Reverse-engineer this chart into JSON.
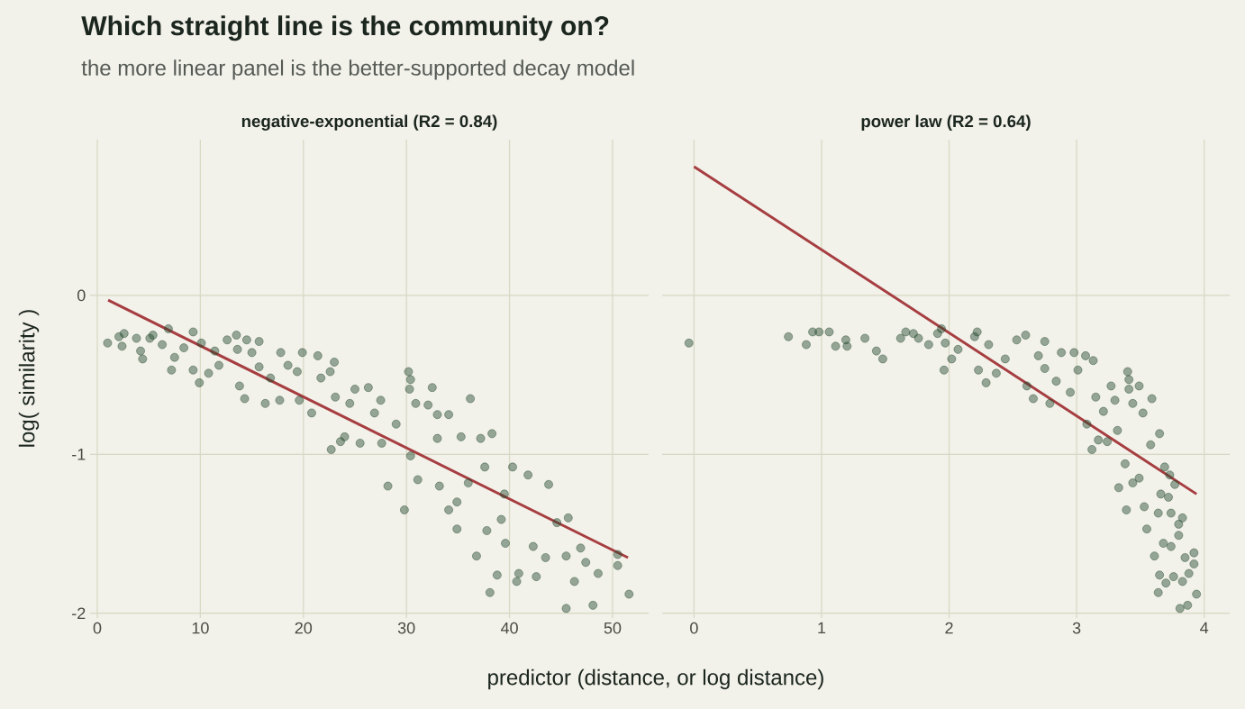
{
  "chart_data": [
    {
      "type": "scatter",
      "title": "Which straight line is the community on?",
      "subtitle": "the more linear panel is the better-supported decay model",
      "annotations": [
        "negative-exponential  (R2 = 0.84)"
      ],
      "xlabel": "predictor (distance, or log distance)",
      "ylabel": "log( similarity )",
      "xlim": [
        -0.7,
        53.5
      ],
      "ylim": [
        -2.03,
        0.98
      ],
      "xticks": [
        0,
        10,
        20,
        30,
        40,
        50
      ],
      "yticks": [
        -2,
        -1,
        0
      ],
      "grid": true,
      "series": [
        {
          "marker": "circle",
          "color": "#24492f",
          "x": [
            1.0,
            2.1,
            2.6,
            2.4,
            3.8,
            4.2,
            4.4,
            5.1,
            5.4,
            6.3,
            6.9,
            7.2,
            7.5,
            8.4,
            9.3,
            9.3,
            9.9,
            10.1,
            10.8,
            11.4,
            11.8,
            12.6,
            13.5,
            13.6,
            13.8,
            14.3,
            14.5,
            15.0,
            15.7,
            15.7,
            16.3,
            16.8,
            17.8,
            17.7,
            18.5,
            19.4,
            19.9,
            19.6,
            20.8,
            21.4,
            21.7,
            22.6,
            23.0,
            22.7,
            23.1,
            23.6,
            24.0,
            24.5,
            25.0,
            25.5,
            26.3,
            26.9,
            27.5,
            27.6,
            28.2,
            29.0,
            29.8,
            30.2,
            30.4,
            30.3,
            30.9,
            30.4,
            31.1,
            32.1,
            32.5,
            33.0,
            33.0,
            33.2,
            34.1,
            34.1,
            34.9,
            34.9,
            35.3,
            36.2,
            36.0,
            36.8,
            37.2,
            37.6,
            37.8,
            38.3,
            38.8,
            38.1,
            39.2,
            39.5,
            39.6,
            40.3,
            40.7,
            40.9,
            41.8,
            42.3,
            42.6,
            43.5,
            43.8,
            44.6,
            45.5,
            45.5,
            45.7,
            46.3,
            46.9,
            47.4,
            48.1,
            48.6,
            50.5,
            50.5,
            51.6
          ],
          "values": [
            -0.3,
            -0.26,
            -0.24,
            -0.32,
            -0.27,
            -0.35,
            -0.4,
            -0.27,
            -0.25,
            -0.31,
            -0.21,
            -0.47,
            -0.39,
            -0.33,
            -0.23,
            -0.47,
            -0.55,
            -0.3,
            -0.49,
            -0.35,
            -0.44,
            -0.28,
            -0.25,
            -0.34,
            -0.57,
            -0.65,
            -0.28,
            -0.36,
            -0.29,
            -0.45,
            -0.68,
            -0.52,
            -0.36,
            -0.66,
            -0.44,
            -0.48,
            -0.36,
            -0.66,
            -0.74,
            -0.38,
            -0.52,
            -0.48,
            -0.42,
            -0.97,
            -0.64,
            -0.92,
            -0.89,
            -0.68,
            -0.59,
            -0.93,
            -0.58,
            -0.74,
            -0.66,
            -0.93,
            -1.2,
            -0.81,
            -1.35,
            -0.48,
            -0.53,
            -0.59,
            -0.68,
            -1.01,
            -1.16,
            -0.69,
            -0.58,
            -0.75,
            -0.9,
            -1.2,
            -0.75,
            -1.35,
            -1.3,
            -1.47,
            -0.89,
            -0.65,
            -1.18,
            -1.64,
            -0.9,
            -1.08,
            -1.48,
            -0.87,
            -1.76,
            -1.87,
            -1.41,
            -1.25,
            -1.56,
            -1.08,
            -1.8,
            -1.75,
            -1.13,
            -1.58,
            -1.77,
            -1.65,
            -1.19,
            -1.43,
            -1.64,
            -1.97,
            -1.4,
            -1.8,
            -1.59,
            -1.68,
            -1.95,
            -1.75,
            -1.63,
            -1.7,
            -1.88
          ]
        },
        {
          "type": "line",
          "marker": "none",
          "color": "#a63d40",
          "x": [
            1.05,
            51.5
          ],
          "values": [
            -0.03,
            -1.65
          ]
        }
      ]
    },
    {
      "type": "scatter",
      "annotations": [
        "power law  (R2 = 0.64)"
      ],
      "xlim": [
        -0.25,
        4.2
      ],
      "ylim": [
        -2.03,
        0.98
      ],
      "xticks": [
        0,
        1,
        2,
        3,
        4
      ],
      "yticks": [
        -2,
        -1,
        0
      ],
      "tick_labels": "x",
      "grid": true,
      "series": [
        {
          "marker": "circle",
          "color": "#24492f",
          "x": [
            -0.04,
            0.74,
            0.88,
            0.93,
            0.98,
            1.06,
            1.11,
            1.19,
            1.2,
            1.34,
            1.43,
            1.48,
            1.62,
            1.66,
            1.72,
            1.76,
            1.84,
            1.91,
            1.94,
            1.96,
            1.97,
            2.02,
            2.07,
            2.2,
            2.22,
            2.23,
            2.29,
            2.31,
            2.37,
            2.44,
            2.53,
            2.6,
            2.61,
            2.66,
            2.7,
            2.75,
            2.75,
            2.79,
            2.84,
            2.88,
            2.95,
            2.98,
            3.01,
            3.07,
            3.08,
            3.12,
            3.13,
            3.15,
            3.17,
            3.21,
            3.27,
            3.3,
            3.24,
            3.33,
            3.32,
            3.39,
            3.4,
            3.41,
            3.41,
            3.44,
            3.38,
            3.44,
            3.49,
            3.52,
            3.49,
            3.53,
            3.55,
            3.59,
            3.58,
            3.65,
            3.61,
            3.64,
            3.68,
            3.66,
            3.69,
            3.65,
            3.64,
            3.7,
            3.72,
            3.74,
            3.73,
            3.74,
            3.77,
            3.8,
            3.83,
            3.8,
            3.76,
            3.83,
            3.85,
            3.81,
            3.87,
            3.88,
            3.92,
            3.92,
            3.94
          ],
          "values": [
            -0.3,
            -0.26,
            -0.31,
            -0.23,
            -0.23,
            -0.23,
            -0.32,
            -0.28,
            -0.32,
            -0.27,
            -0.35,
            -0.4,
            -0.27,
            -0.23,
            -0.24,
            -0.27,
            -0.31,
            -0.24,
            -0.21,
            -0.47,
            -0.3,
            -0.4,
            -0.34,
            -0.26,
            -0.23,
            -0.47,
            -0.55,
            -0.31,
            -0.49,
            -0.4,
            -0.28,
            -0.25,
            -0.57,
            -0.65,
            -0.38,
            -0.29,
            -0.46,
            -0.68,
            -0.54,
            -0.36,
            -0.61,
            -0.36,
            -0.47,
            -0.38,
            -0.81,
            -0.97,
            -0.41,
            -0.64,
            -0.91,
            -0.73,
            -0.57,
            -0.66,
            -0.92,
            -1.21,
            -0.85,
            -1.35,
            -0.48,
            -0.53,
            -0.59,
            -0.68,
            -1.06,
            -1.18,
            -0.57,
            -0.74,
            -1.15,
            -1.33,
            -1.47,
            -0.65,
            -0.94,
            -0.87,
            -1.64,
            -1.37,
            -1.56,
            -1.25,
            -1.08,
            -1.76,
            -1.87,
            -1.81,
            -1.27,
            -1.58,
            -1.13,
            -1.37,
            -1.19,
            -1.51,
            -1.4,
            -1.44,
            -1.77,
            -1.8,
            -1.65,
            -1.97,
            -1.95,
            -1.75,
            -1.62,
            -1.69,
            -1.88
          ]
        },
        {
          "type": "line",
          "marker": "none",
          "color": "#a63d40",
          "x": [
            0.0,
            3.94
          ],
          "values": [
            0.81,
            -1.25
          ]
        }
      ]
    }
  ]
}
